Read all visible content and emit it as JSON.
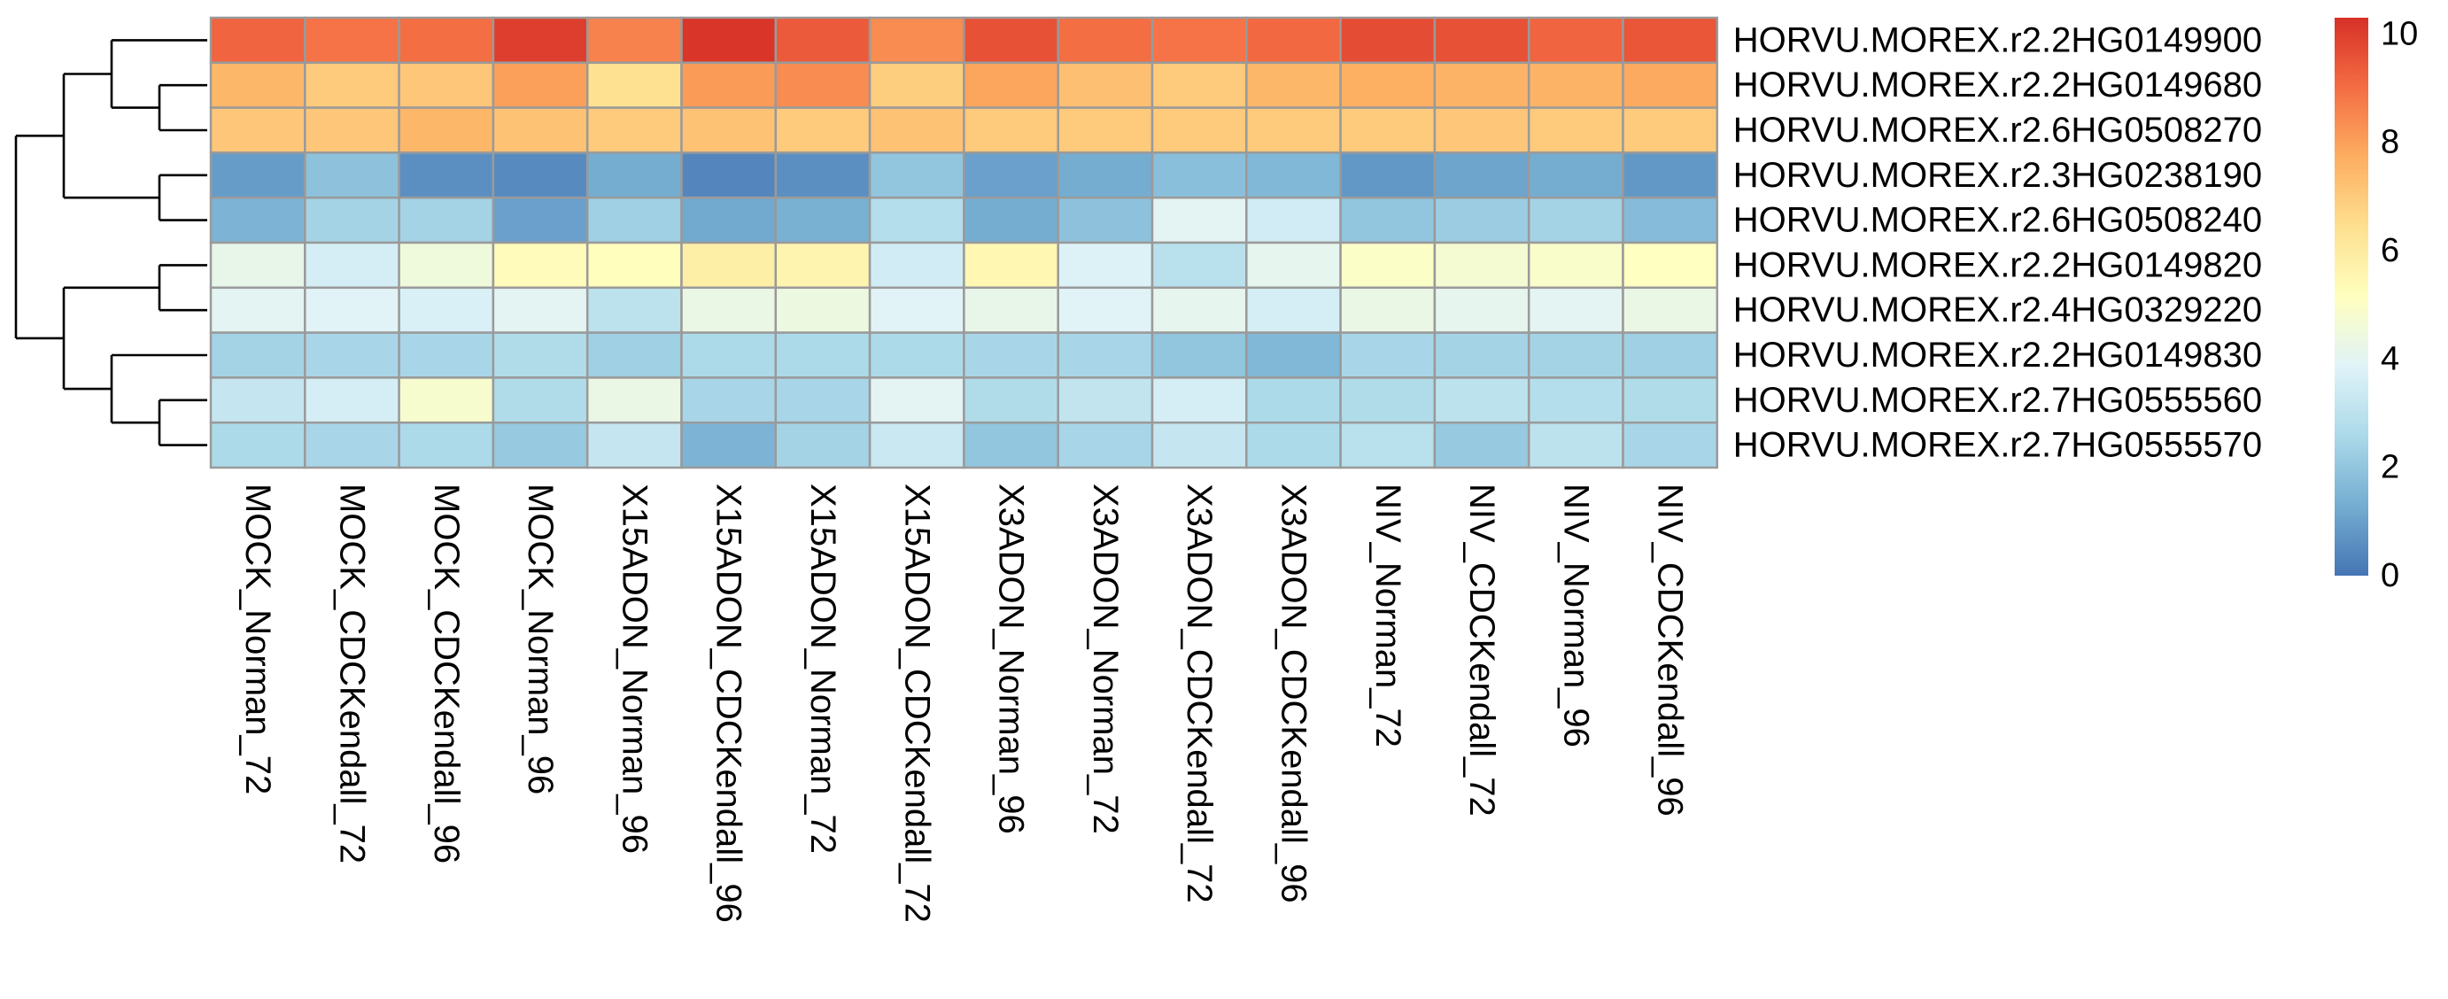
{
  "chart_data": {
    "type": "heatmap",
    "title": "",
    "xlabel": "",
    "ylabel": "",
    "rows": [
      "HORVU.MOREX.r2.2HG0149900",
      "HORVU.MOREX.r2.2HG0149680",
      "HORVU.MOREX.r2.6HG0508270",
      "HORVU.MOREX.r2.3HG0238190",
      "HORVU.MOREX.r2.6HG0508240",
      "HORVU.MOREX.r2.2HG0149820",
      "HORVU.MOREX.r2.4HG0329220",
      "HORVU.MOREX.r2.2HG0149830",
      "HORVU.MOREX.r2.7HG0555560",
      "HORVU.MOREX.r2.7HG0555570"
    ],
    "columns": [
      "MOCK_Norman_72",
      "MOCK_CDCKendall_72",
      "MOCK_CDCKendall_96",
      "MOCK_Norman_96",
      "X15ADON_Norman_96",
      "X15ADON_CDCKendall_96",
      "X15ADON_Norman_72",
      "X15ADON_CDCKendall_72",
      "X3ADON_Norman_96",
      "X3ADON_Norman_72",
      "X3ADON_CDCKendall_72",
      "X3ADON_CDCKendall_96",
      "NIV_Norman_72",
      "NIV_CDCKendall_72",
      "NIV_Norman_96",
      "NIV_CDCKendall_96"
    ],
    "values": [
      [
        9.2,
        8.9,
        9.0,
        10.0,
        8.6,
        10.2,
        9.4,
        8.4,
        9.6,
        9.0,
        8.9,
        9.1,
        9.7,
        9.6,
        9.2,
        9.5
      ],
      [
        7.5,
        7.0,
        7.1,
        8.0,
        6.4,
        8.1,
        8.4,
        6.9,
        7.9,
        7.3,
        7.0,
        7.5,
        7.7,
        7.6,
        7.6,
        7.8
      ],
      [
        7.1,
        7.1,
        7.5,
        7.2,
        7.0,
        7.2,
        7.0,
        7.2,
        7.0,
        7.0,
        7.0,
        7.0,
        7.0,
        7.1,
        7.0,
        7.0
      ],
      [
        0.9,
        1.9,
        0.6,
        0.5,
        1.3,
        0.4,
        0.6,
        2.0,
        1.0,
        1.3,
        1.8,
        1.6,
        0.8,
        1.1,
        1.3,
        0.8
      ],
      [
        1.5,
        2.4,
        2.4,
        1.0,
        2.3,
        1.2,
        1.4,
        2.8,
        1.3,
        1.9,
        4.0,
        3.5,
        2.0,
        2.2,
        2.4,
        1.7
      ],
      [
        4.2,
        3.6,
        4.5,
        5.3,
        5.2,
        5.8,
        5.6,
        3.5,
        5.5,
        3.8,
        2.9,
        4.1,
        5.0,
        4.7,
        4.9,
        5.1
      ],
      [
        4.0,
        3.9,
        3.7,
        4.0,
        3.0,
        4.3,
        4.4,
        3.9,
        4.2,
        3.9,
        4.1,
        3.6,
        4.3,
        4.1,
        4.0,
        4.3
      ],
      [
        2.4,
        2.5,
        2.5,
        2.7,
        2.3,
        2.6,
        2.6,
        2.6,
        2.5,
        2.5,
        2.0,
        1.6,
        2.5,
        2.4,
        2.4,
        2.3
      ],
      [
        3.2,
        3.6,
        4.8,
        2.7,
        4.3,
        2.5,
        2.5,
        4.0,
        2.7,
        3.1,
        3.6,
        2.6,
        2.7,
        3.0,
        2.8,
        2.7
      ],
      [
        2.6,
        2.5,
        2.6,
        2.1,
        3.2,
        1.5,
        2.4,
        3.3,
        2.0,
        2.5,
        3.2,
        2.6,
        2.9,
        2.1,
        3.0,
        2.5
      ]
    ],
    "legend": {
      "min": 0,
      "max": 10.3,
      "ticks": [
        "0",
        "2",
        "4",
        "6",
        "8",
        "10"
      ],
      "colors": [
        "#4575b4",
        "#74add1",
        "#abd9e9",
        "#e0f3f8",
        "#ffffbf",
        "#fee090",
        "#fdae61",
        "#f46d43",
        "#d73027"
      ]
    },
    "row_dendrogram": "(((r0,(r1,r2)),(r3,r4)),((r5,r6),(r7,(r8,r9))))"
  }
}
